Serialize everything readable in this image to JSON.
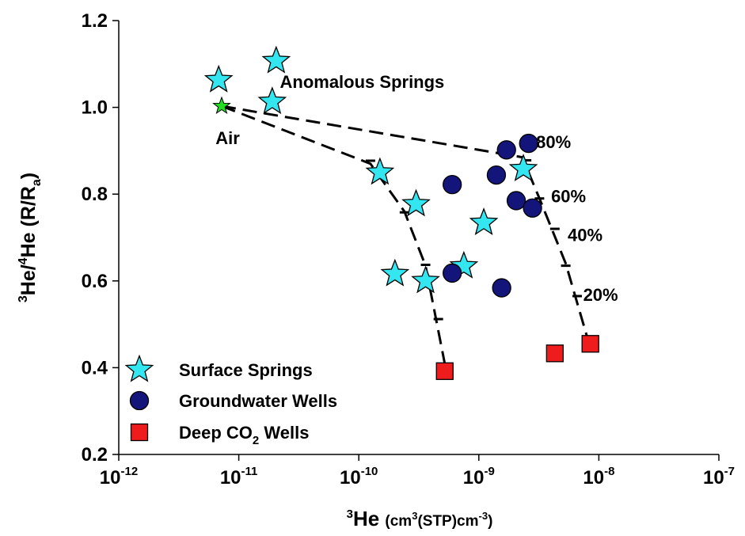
{
  "chart_data": {
    "type": "scatter",
    "x_scale": "log",
    "xlim": [
      1e-12,
      1e-07
    ],
    "ylim": [
      0.2,
      1.2
    ],
    "grid": false,
    "legend_placement": "bottom-left",
    "y_ticks": [
      "0.2",
      "0.4",
      "0.6",
      "0.8",
      "1.0",
      "1.2"
    ],
    "x_tick_bases": [
      "10",
      "10",
      "10",
      "10",
      "10",
      "10"
    ],
    "x_tick_exps": [
      "-12",
      "-11",
      "-10",
      "-9",
      "-8",
      "-7"
    ],
    "xlabel": {
      "main": "3He",
      "sup1": "3",
      "body1": "He ",
      "paren": "(cm",
      "sup2": "3",
      "mid": "(STP)cm",
      "sup3": "-3",
      "end": ")"
    },
    "ylabel": {
      "sup1": "3",
      "part1": "He/",
      "sup2": "4",
      "part2": "He (R/R",
      "sub": "a",
      "part3": ")"
    },
    "series": [
      {
        "name": "Surface Springs",
        "marker": "star",
        "color": "#33e6f0",
        "points": [
          {
            "x": 6.8e-12,
            "y": 1.063
          },
          {
            "x": 2.05e-11,
            "y": 1.107
          },
          {
            "x": 1.9e-11,
            "y": 1.013
          },
          {
            "x": 1.5e-10,
            "y": 0.85
          },
          {
            "x": 3e-10,
            "y": 0.777
          },
          {
            "x": 2e-10,
            "y": 0.616
          },
          {
            "x": 3.6e-10,
            "y": 0.6
          },
          {
            "x": 7.5e-10,
            "y": 0.634
          },
          {
            "x": 1.1e-09,
            "y": 0.734
          },
          {
            "x": 2.35e-09,
            "y": 0.858
          }
        ]
      },
      {
        "name": "Groundwater Wells",
        "marker": "circle",
        "color": "#14157a",
        "points": [
          {
            "x": 1.7e-09,
            "y": 0.902
          },
          {
            "x": 2.6e-09,
            "y": 0.917
          },
          {
            "x": 1.4e-09,
            "y": 0.844
          },
          {
            "x": 6e-10,
            "y": 0.822
          },
          {
            "x": 2.05e-09,
            "y": 0.785
          },
          {
            "x": 2.8e-09,
            "y": 0.768
          },
          {
            "x": 6e-10,
            "y": 0.618
          },
          {
            "x": 1.55e-09,
            "y": 0.584
          }
        ]
      },
      {
        "name": "Deep CO2 Wells",
        "name_parts": {
          "pre": "Deep CO",
          "sub": "2",
          "post": " Wells"
        },
        "marker": "square",
        "color": "#ee1c1c",
        "points": [
          {
            "x": 5.2e-10,
            "y": 0.392
          },
          {
            "x": 4.3e-09,
            "y": 0.433
          },
          {
            "x": 8.5e-09,
            "y": 0.455
          }
        ]
      }
    ],
    "air_point": {
      "x": 7.2e-12,
      "y": 1.003,
      "label": "Air",
      "color": "#22dd22"
    },
    "mixing_lines": [
      {
        "points": [
          [
            7.2e-12,
            1.003
          ],
          [
            2.3e-09,
            0.885
          ],
          [
            3.2e-09,
            0.79
          ],
          [
            5.3e-09,
            0.64
          ],
          [
            8.3e-09,
            0.455
          ]
        ]
      },
      {
        "points": [
          [
            7.2e-12,
            1.003
          ],
          [
            1.25e-10,
            0.87
          ],
          [
            2.4e-10,
            0.76
          ],
          [
            3.6e-10,
            0.635
          ],
          [
            5.2e-10,
            0.41
          ]
        ]
      }
    ],
    "tick_marks": [
      {
        "x": 2.5e-09,
        "y": 0.878
      },
      {
        "x": 3.2e-09,
        "y": 0.79
      },
      {
        "x": 4.3e-09,
        "y": 0.72
      },
      {
        "x": 5.3e-09,
        "y": 0.635
      },
      {
        "x": 6.6e-09,
        "y": 0.565
      },
      {
        "x": 1.25e-10,
        "y": 0.877
      },
      {
        "x": 2.4e-10,
        "y": 0.758
      },
      {
        "x": 3.6e-10,
        "y": 0.637
      },
      {
        "x": 4.6e-10,
        "y": 0.512
      }
    ],
    "annotations": [
      {
        "text": "Anomalous Springs",
        "x": 2.2e-11,
        "y": 1.045
      },
      {
        "text": "Air",
        "x": 6.4e-12,
        "y": 0.915
      },
      {
        "text": "80%",
        "x": 3e-09,
        "y": 0.906
      },
      {
        "text": "60%",
        "x": 4e-09,
        "y": 0.781
      },
      {
        "text": "40%",
        "x": 5.5e-09,
        "y": 0.692
      },
      {
        "text": "20%",
        "x": 7.4e-09,
        "y": 0.554
      }
    ]
  }
}
